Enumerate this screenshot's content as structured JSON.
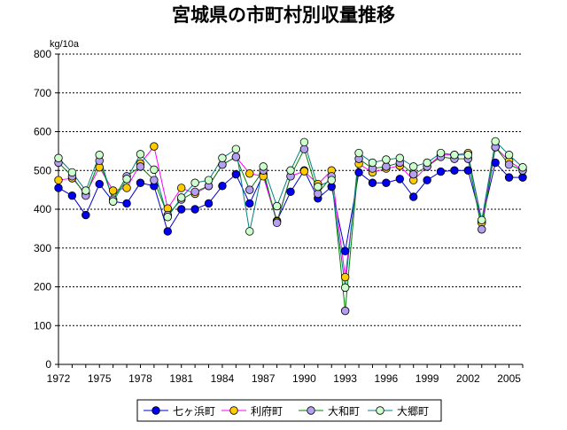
{
  "chart_data": {
    "type": "line",
    "title": "宮城県の市町村別収量推移",
    "ylabel": "kg/10a",
    "xlabel": "",
    "ylim": [
      0,
      800
    ],
    "yticks": [
      0,
      100,
      200,
      300,
      400,
      500,
      600,
      700,
      800
    ],
    "xlim": [
      1972,
      2006
    ],
    "xtick_labels": [
      "1972",
      "1975",
      "1978",
      "1981",
      "1984",
      "1987",
      "1990",
      "1993",
      "1996",
      "1999",
      "2002",
      "2005"
    ],
    "grid": "horizontal-dotted",
    "legend_position": "bottom",
    "x": [
      1972,
      1973,
      1974,
      1975,
      1976,
      1977,
      1978,
      1979,
      1980,
      1981,
      1982,
      1983,
      1984,
      1985,
      1986,
      1987,
      1988,
      1989,
      1990,
      1991,
      1992,
      1993,
      1994,
      1995,
      1996,
      1997,
      1998,
      1999,
      2000,
      2001,
      2002,
      2003,
      2004,
      2005,
      2006
    ],
    "series": [
      {
        "name": "七ヶ浜町",
        "line_color": "#0000cc",
        "marker_color": "#0000ee",
        "values": [
          455,
          435,
          385,
          465,
          420,
          415,
          468,
          460,
          343,
          400,
          400,
          415,
          460,
          490,
          415,
          490,
          370,
          445,
          500,
          428,
          458,
          292,
          495,
          468,
          468,
          478,
          432,
          475,
          497,
          500,
          500,
          368,
          520,
          482,
          482
        ]
      },
      {
        "name": "利府町",
        "line_color": "#ff00ff",
        "marker_color": "#ffcc00",
        "values": [
          475,
          480,
          440,
          508,
          448,
          455,
          518,
          562,
          402,
          455,
          440,
          460,
          515,
          535,
          492,
          485,
          368,
          485,
          498,
          465,
          500,
          225,
          517,
          495,
          505,
          512,
          475,
          510,
          540,
          540,
          545,
          365,
          560,
          525,
          500
        ]
      },
      {
        "name": "大和町",
        "line_color": "#008000",
        "marker_color": "#b49ff0",
        "values": [
          520,
          485,
          435,
          525,
          425,
          485,
          510,
          475,
          385,
          425,
          445,
          460,
          515,
          535,
          450,
          500,
          365,
          485,
          555,
          440,
          485,
          138,
          530,
          505,
          510,
          520,
          490,
          510,
          535,
          530,
          530,
          348,
          560,
          515,
          500
        ]
      },
      {
        "name": "大郷町",
        "line_color": "#008080",
        "marker_color": "#ccffcc",
        "values": [
          532,
          495,
          448,
          540,
          420,
          478,
          542,
          502,
          380,
          430,
          468,
          475,
          532,
          555,
          343,
          510,
          408,
          500,
          573,
          458,
          475,
          198,
          545,
          520,
          528,
          532,
          510,
          520,
          545,
          540,
          540,
          372,
          575,
          540,
          508
        ]
      }
    ]
  }
}
